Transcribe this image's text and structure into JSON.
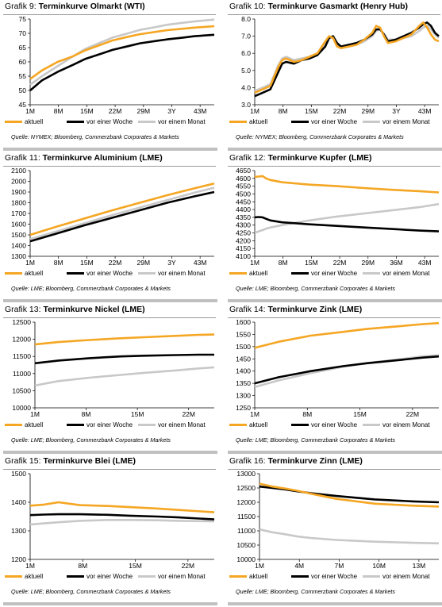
{
  "legend_labels": [
    "aktuell",
    "vor einer Woche",
    "vor einem Monat"
  ],
  "series_colors": [
    "#f5a623",
    "#000000",
    "#c8c8c8"
  ],
  "chart_data": [
    {
      "type": "line",
      "title_prefix": "Grafik 9:",
      "title": "Terminkurve Olmarkt (WTI)",
      "source": "Quelle: NYMEX; Bloomberg, Commerzbank Corporates & Markets",
      "x_ticks": [
        "1M",
        "8M",
        "15M",
        "22M",
        "29M",
        "3Y",
        "43M"
      ],
      "ylim": [
        45,
        75
      ],
      "y_ticks": [
        45,
        50,
        55,
        60,
        65,
        70,
        75
      ],
      "x": [
        1,
        4,
        8,
        12,
        15,
        19,
        22,
        26,
        29,
        33,
        36,
        40,
        43,
        48
      ],
      "series": [
        {
          "name": "aktuell",
          "values": [
            54,
            57,
            60,
            62,
            64,
            66,
            67.5,
            68.8,
            69.7,
            70.5,
            71.1,
            71.6,
            72,
            72.5
          ]
        },
        {
          "name": "vor einer Woche",
          "values": [
            50,
            53.5,
            56.5,
            59,
            61,
            62.8,
            64.2,
            65.5,
            66.5,
            67.3,
            67.9,
            68.5,
            69,
            69.5
          ]
        },
        {
          "name": "vor einem Monat",
          "values": [
            52,
            55,
            58.5,
            62,
            64.5,
            66.8,
            68.5,
            70,
            71.2,
            72.2,
            73,
            73.7,
            74.2,
            74.8
          ]
        }
      ]
    },
    {
      "type": "line",
      "title_prefix": "Grafik 10:",
      "title": "Terminkurve Gasmarkt (Henry Hub)",
      "source": "Quelle: NYMEX; Bloomberg, Commerzbank Corporates & Markets",
      "x_ticks": [
        "1M",
        "8M",
        "15M",
        "22M",
        "29M",
        "3Y",
        "43M"
      ],
      "ylim": [
        3.0,
        8.0
      ],
      "y_ticks": [
        3.0,
        4.0,
        5.0,
        6.0,
        7.0,
        8.0
      ],
      "x": [
        1,
        3,
        5,
        7,
        8,
        9,
        11,
        13,
        15,
        17,
        19,
        20,
        21,
        22,
        23,
        25,
        27,
        29,
        31,
        32,
        33,
        34,
        35,
        37,
        39,
        41,
        43,
        44,
        45,
        46,
        47,
        48
      ],
      "series": [
        {
          "name": "aktuell",
          "values": [
            3.7,
            3.9,
            4.1,
            5.2,
            5.6,
            5.7,
            5.5,
            5.6,
            5.8,
            6.0,
            6.7,
            7.0,
            6.9,
            6.4,
            6.3,
            6.4,
            6.5,
            6.8,
            7.2,
            7.6,
            7.5,
            7.0,
            6.6,
            6.7,
            6.9,
            7.1,
            7.6,
            7.8,
            7.5,
            7.1,
            6.8,
            6.7
          ]
        },
        {
          "name": "vor einer Woche",
          "values": [
            3.5,
            3.7,
            3.9,
            4.9,
            5.4,
            5.5,
            5.4,
            5.6,
            5.7,
            5.9,
            6.4,
            6.9,
            7.0,
            6.6,
            6.4,
            6.5,
            6.6,
            6.8,
            7.1,
            7.4,
            7.4,
            7.1,
            6.7,
            6.8,
            7.0,
            7.2,
            7.5,
            7.7,
            7.8,
            7.6,
            7.2,
            7.0
          ]
        },
        {
          "name": "vor einem Monat",
          "values": [
            3.8,
            4.0,
            4.2,
            5.3,
            5.7,
            5.8,
            5.6,
            5.7,
            5.8,
            6.0,
            6.6,
            6.9,
            6.9,
            6.5,
            6.3,
            6.4,
            6.5,
            6.7,
            7.0,
            7.3,
            7.4,
            7.1,
            6.8,
            6.8,
            6.9,
            7.0,
            7.3,
            7.5,
            7.6,
            7.4,
            7.1,
            6.9
          ]
        }
      ]
    },
    {
      "type": "line",
      "title_prefix": "Grafik 11:",
      "title": "Terminkurve Aluminium (LME)",
      "source": "Quelle: LME; Bloomberg, Commerzbank Corporates & Markets",
      "x_ticks": [
        "1M",
        "8M",
        "15M",
        "22M",
        "29M",
        "3Y",
        "43M"
      ],
      "ylim": [
        1300,
        2100
      ],
      "y_ticks": [
        1300,
        1400,
        1500,
        1600,
        1700,
        1800,
        1900,
        2000,
        2100
      ],
      "x": [
        1,
        8,
        15,
        22,
        29,
        36,
        43,
        48
      ],
      "series": [
        {
          "name": "aktuell",
          "values": [
            1500,
            1580,
            1655,
            1730,
            1800,
            1870,
            1935,
            1980
          ]
        },
        {
          "name": "vor einer Woche",
          "values": [
            1440,
            1515,
            1590,
            1660,
            1730,
            1800,
            1860,
            1900
          ]
        },
        {
          "name": "vor einem Monat",
          "values": [
            1460,
            1535,
            1610,
            1685,
            1755,
            1825,
            1895,
            1940
          ]
        }
      ]
    },
    {
      "type": "line",
      "title_prefix": "Grafik 12:",
      "title": "Terminkurve Kupfer (LME)",
      "source": "Quelle: LME; Bloomberg, Commerzbank Corporates & Markets",
      "x_ticks": [
        "1M",
        "8M",
        "15M",
        "22M",
        "29M",
        "36M",
        "43M"
      ],
      "ylim": [
        4100,
        4650
      ],
      "y_ticks": [
        4100,
        4150,
        4200,
        4250,
        4300,
        4350,
        4400,
        4450,
        4500,
        4550,
        4600,
        4650
      ],
      "x": [
        1,
        2,
        3,
        4,
        5,
        8,
        15,
        22,
        29,
        36,
        43,
        48
      ],
      "series": [
        {
          "name": "aktuell",
          "values": [
            4610,
            4612,
            4615,
            4598,
            4590,
            4575,
            4560,
            4550,
            4538,
            4527,
            4518,
            4510
          ]
        },
        {
          "name": "vor einer Woche",
          "values": [
            4350,
            4352,
            4350,
            4340,
            4330,
            4318,
            4305,
            4295,
            4285,
            4275,
            4265,
            4260
          ]
        },
        {
          "name": "vor einem Monat",
          "values": [
            4250,
            4260,
            4268,
            4278,
            4285,
            4300,
            4330,
            4355,
            4375,
            4395,
            4415,
            4435
          ]
        }
      ]
    },
    {
      "type": "line",
      "title_prefix": "Grafik 13:",
      "title": "Terminkurve Nickel (LME)",
      "source": "Quelle: LME; Bloomberg, Commerzbank Corporates & Markets",
      "x_ticks": [
        "1M",
        "8M",
        "15M",
        "22M"
      ],
      "ylim": [
        10000,
        12500
      ],
      "y_ticks": [
        10000,
        10500,
        11000,
        11500,
        12000,
        12500
      ],
      "x": [
        1,
        4,
        8,
        12,
        15,
        19,
        22,
        24
      ],
      "series": [
        {
          "name": "aktuell",
          "values": [
            11850,
            11920,
            11980,
            12030,
            12060,
            12100,
            12130,
            12140
          ]
        },
        {
          "name": "vor einer Woche",
          "values": [
            11300,
            11380,
            11450,
            11500,
            11520,
            11540,
            11550,
            11550
          ]
        },
        {
          "name": "vor einem Monat",
          "values": [
            10650,
            10780,
            10880,
            10960,
            11020,
            11090,
            11150,
            11180
          ]
        }
      ]
    },
    {
      "type": "line",
      "title_prefix": "Grafik 14:",
      "title": "Terminkurve Zink (LME)",
      "source": "Quelle: LME; Bloomberg, Commerzbank Corporates & Markets",
      "x_ticks": [
        "1M",
        "8M",
        "15M",
        "22M"
      ],
      "ylim": [
        1250,
        1600
      ],
      "y_ticks": [
        1250,
        1300,
        1350,
        1400,
        1450,
        1500,
        1550,
        1600
      ],
      "x": [
        1,
        4,
        8,
        12,
        15,
        19,
        22,
        24
      ],
      "series": [
        {
          "name": "aktuell",
          "values": [
            1495,
            1520,
            1545,
            1560,
            1572,
            1583,
            1592,
            1596
          ]
        },
        {
          "name": "vor einer Woche",
          "values": [
            1350,
            1375,
            1400,
            1420,
            1432,
            1445,
            1455,
            1460
          ]
        },
        {
          "name": "vor einem Monat",
          "values": [
            1335,
            1362,
            1392,
            1418,
            1433,
            1448,
            1460,
            1465
          ]
        }
      ]
    },
    {
      "type": "line",
      "title_prefix": "Grafik 15:",
      "title": "Terminkurve Blei (LME)",
      "source": "Quelle: LME; Bloomberg, Commerzbank Corporates & Markets",
      "x_ticks": [
        "1M",
        "8M",
        "15M",
        "22M"
      ],
      "ylim": [
        1200,
        1500
      ],
      "y_ticks": [
        1200,
        1300,
        1400,
        1500
      ],
      "x": [
        1,
        3,
        5,
        8,
        12,
        15,
        19,
        22,
        27
      ],
      "series": [
        {
          "name": "aktuell",
          "values": [
            1388,
            1392,
            1400,
            1390,
            1387,
            1383,
            1378,
            1373,
            1365
          ]
        },
        {
          "name": "vor einer Woche",
          "values": [
            1355,
            1357,
            1358,
            1358,
            1356,
            1353,
            1350,
            1347,
            1340
          ]
        },
        {
          "name": "vor einem Monat",
          "values": [
            1322,
            1326,
            1330,
            1335,
            1338,
            1338,
            1337,
            1335,
            1333
          ]
        }
      ]
    },
    {
      "type": "line",
      "title_prefix": "Grafik 16:",
      "title": "Terminkurve Zinn (LME)",
      "source": "Quelle: LME; Bloomberg, Commerzbank Corporates & Markets",
      "x_ticks": [
        "1M",
        "4M",
        "7M",
        "10M",
        "13M"
      ],
      "ylim": [
        10000,
        13000
      ],
      "y_ticks": [
        10000,
        10500,
        11000,
        11500,
        12000,
        12500,
        13000
      ],
      "x": [
        1,
        2,
        3,
        4,
        5,
        7,
        10,
        13,
        15
      ],
      "series": [
        {
          "name": "aktuell",
          "values": [
            12650,
            12550,
            12480,
            12400,
            12300,
            12120,
            11950,
            11880,
            11850
          ]
        },
        {
          "name": "vor einer Woche",
          "values": [
            12550,
            12500,
            12450,
            12380,
            12320,
            12220,
            12100,
            12030,
            12000
          ]
        },
        {
          "name": "vor einem Monat",
          "values": [
            11050,
            10950,
            10880,
            10800,
            10750,
            10680,
            10620,
            10580,
            10560
          ]
        }
      ]
    }
  ]
}
